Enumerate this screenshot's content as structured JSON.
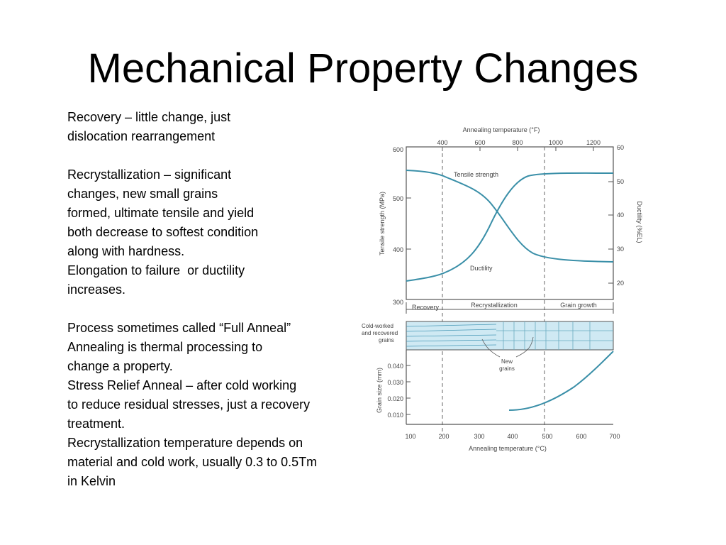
{
  "slide": {
    "title": "Mechanical Property Changes",
    "lines": [
      "Recovery – little change, just",
      "dislocation rearrangement",
      "",
      "Recrystallization – significant",
      "changes, new small grains",
      "formed, ultimate tensile and yield",
      "both decrease to softest condition",
      "along with hardness.",
      "Elongation to failure  or ductility",
      "increases.",
      "",
      "Process sometimes called “Full Anneal”",
      "Annealing is thermal processing to",
      "change a property.",
      "Stress Relief Anneal – after cold working",
      "to reduce residual stresses, just a recovery",
      "treatment.",
      "Recrystallization temperature depends on",
      "material and cold work, usually 0.3 to 0.5Tm",
      "in Kelvin"
    ]
  },
  "figure": {
    "top_axis_label": "Annealing temperature (°F)",
    "top_ticks": [
      "400",
      "600",
      "800",
      "1000",
      "1200"
    ],
    "left_axis_label": "Tensile strength (MPa)",
    "left_ticks": [
      "600",
      "500",
      "400",
      "300"
    ],
    "right_axis_label": "Ductility (%EL)",
    "right_ticks": [
      "60",
      "50",
      "40",
      "30",
      "20"
    ],
    "curve_labels": {
      "tensile": "Tensile strength",
      "ductility": "Ductility"
    },
    "regions": [
      "Recovery",
      "Recrystallization",
      "Grain growth"
    ],
    "micro_label": [
      "Cold-worked",
      "and recovered",
      "grains"
    ],
    "new_grains_label": [
      "New",
      "grains"
    ],
    "grain_axis_label": "Grain size (mm)",
    "grain_ticks": [
      "0.040",
      "0.030",
      "0.020",
      "0.010"
    ],
    "bottom_ticks": [
      "100",
      "200",
      "300",
      "400",
      "500",
      "600",
      "700"
    ],
    "bottom_axis_label": "Annealing temperature (°C)",
    "colors": {
      "curve": "#3a8fa8",
      "band": "#cfe9f3",
      "frame": "#555555"
    }
  }
}
